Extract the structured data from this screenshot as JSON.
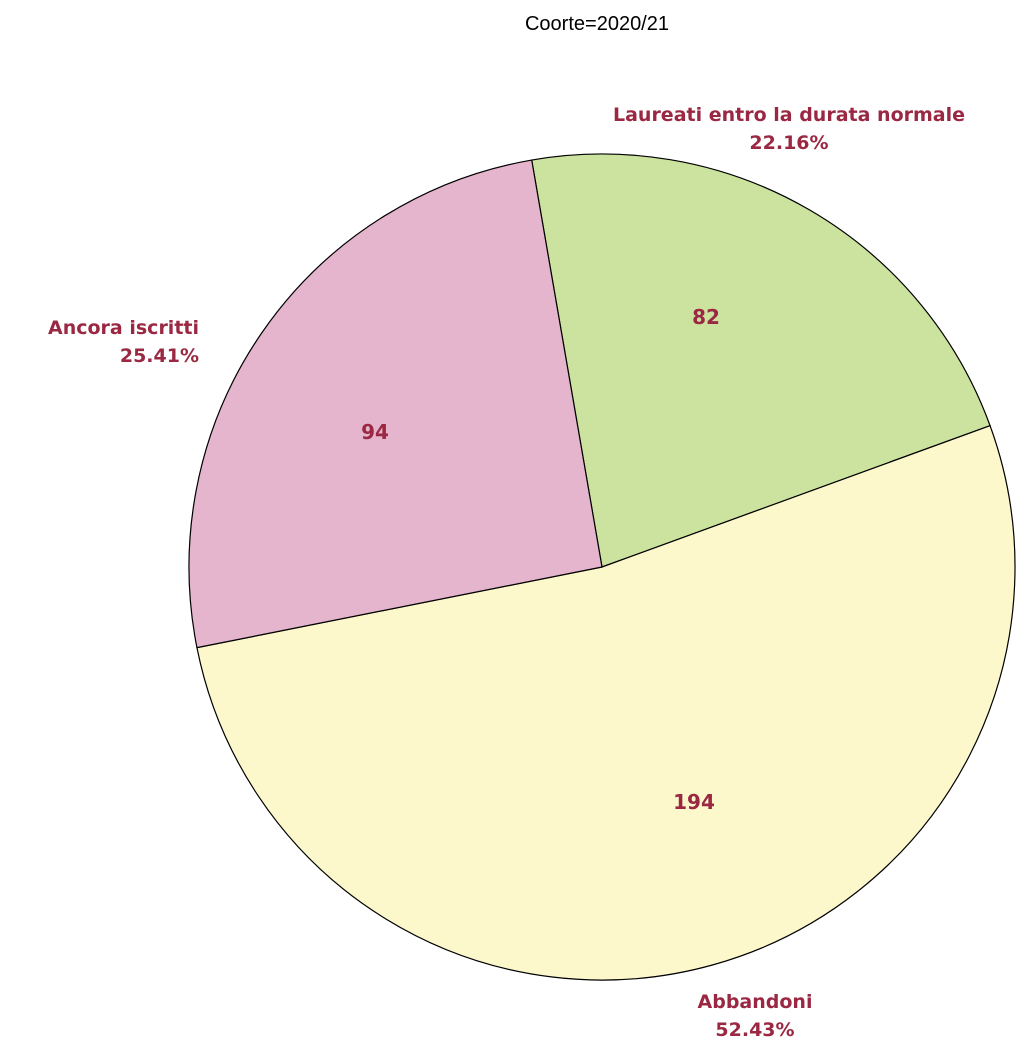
{
  "chart_data": {
    "type": "pie",
    "title": "Coorte=2020/21",
    "slices": [
      {
        "label": "Laureati entro la durata normale",
        "value": 82,
        "percent": "22.16%",
        "color": "#cce3a0"
      },
      {
        "label": "Abbandoni",
        "value": 194,
        "percent": "52.43%",
        "color": "#fcf8cc"
      },
      {
        "label": "Ancora iscritti",
        "value": 94,
        "percent": "25.41%",
        "color": "#e4b5cc"
      }
    ],
    "label_color": "#9a2842",
    "edge_color": "#000000"
  }
}
